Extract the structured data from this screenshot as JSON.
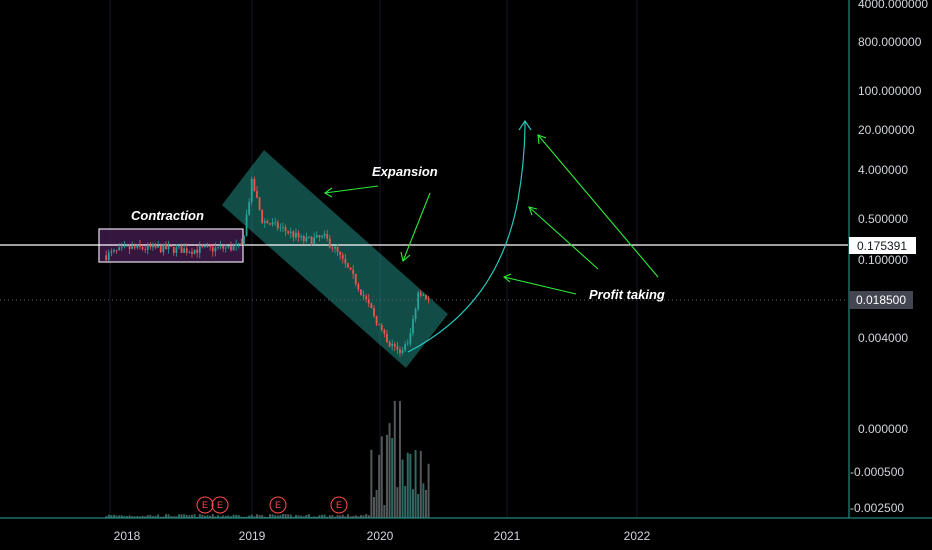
{
  "chart_data": {
    "type": "candlestick",
    "price_axis": {
      "scale": "log",
      "tick_labels": [
        "4000.000000",
        "800.000000",
        "100.000000",
        "20.000000",
        "4.000000",
        "0.500000",
        "0.100000",
        "0.004000"
      ],
      "tick_values": [
        4000,
        800,
        100,
        20,
        4,
        0.5,
        0.1,
        0.004
      ]
    },
    "volume_axis": {
      "tick_labels": [
        "0.000000",
        "-0.000500",
        "-0.002500"
      ]
    },
    "x_axis": {
      "tick_labels": [
        "2018",
        "2019",
        "2020",
        "2021",
        "2022"
      ]
    },
    "horizontal_line": {
      "value": 0.175391,
      "label": "0.175391",
      "color": "#ffffff"
    },
    "last_price": {
      "value": 0.0185,
      "label": "0.018500",
      "color": "#9598a1"
    },
    "annotations": [
      "Contraction",
      "Expansion",
      "Profit taking"
    ],
    "events": [
      "E",
      "E",
      "E",
      "E"
    ],
    "price_path": [
      {
        "date": "2017-11",
        "price": 0.12
      },
      {
        "date": "2018-01",
        "price": 0.16
      },
      {
        "date": "2018-04",
        "price": 0.16
      },
      {
        "date": "2018-07",
        "price": 0.15
      },
      {
        "date": "2018-10",
        "price": 0.16
      },
      {
        "date": "2018-12",
        "price": 0.17
      },
      {
        "date": "2019-01",
        "price": 2.5
      },
      {
        "date": "2019-02",
        "price": 0.5
      },
      {
        "date": "2019-04",
        "price": 0.35
      },
      {
        "date": "2019-06",
        "price": 0.22
      },
      {
        "date": "2019-08",
        "price": 0.25
      },
      {
        "date": "2019-09",
        "price": 0.15
      },
      {
        "date": "2019-11",
        "price": 0.04
      },
      {
        "date": "2020-01",
        "price": 0.008
      },
      {
        "date": "2020-02",
        "price": 0.003
      },
      {
        "date": "2020-03",
        "price": 0.0025
      },
      {
        "date": "2020-04",
        "price": 0.003
      },
      {
        "date": "2020-05",
        "price": 0.03
      },
      {
        "date": "2020-06",
        "price": 0.0185
      }
    ],
    "colors": {
      "up": "#26a69a",
      "down": "#ef5350",
      "channel": "#1f8a82",
      "arrow": "#2eea3a",
      "curve": "#26a69a",
      "volume": "#6f7678"
    }
  }
}
